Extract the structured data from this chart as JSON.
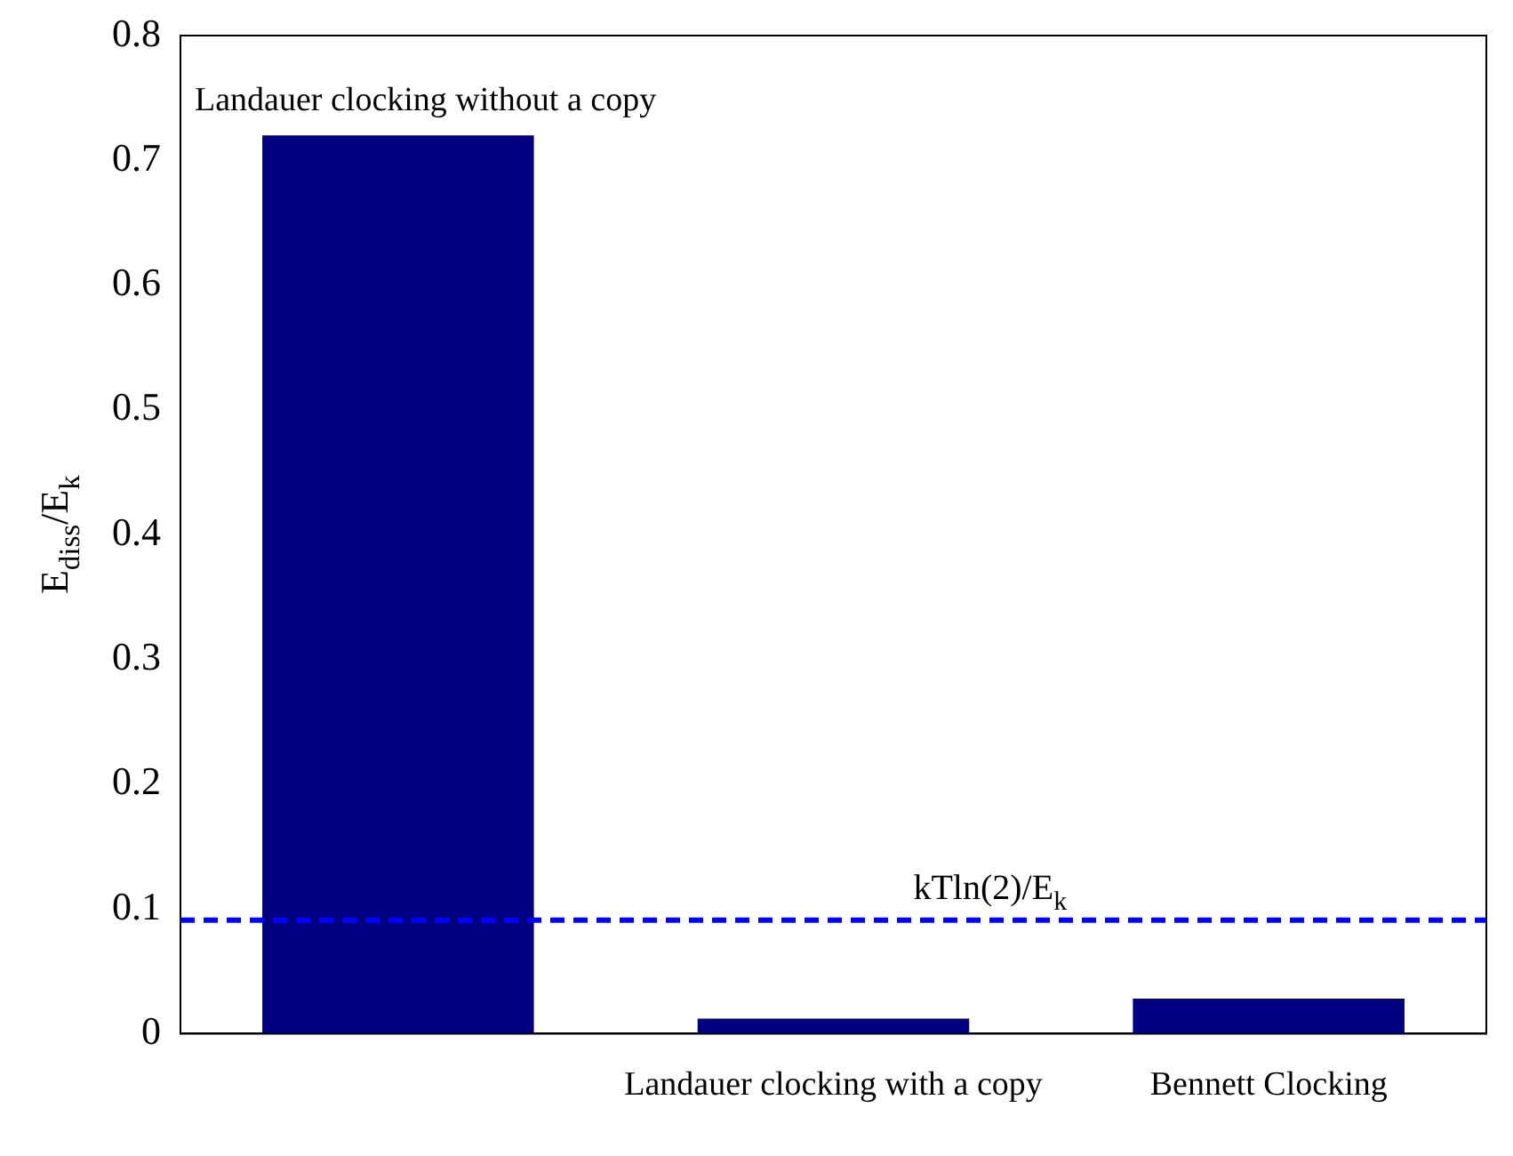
{
  "chart_data": {
    "type": "bar",
    "ylabel": "E$_{diss}$/E$_{k}$",
    "categories": [
      null,
      "Landauer clocking with a copy",
      "Bennett Clocking"
    ],
    "values": [
      0.72,
      0.012,
      0.028
    ],
    "color": "#000080",
    "ylim": [
      0,
      0.8
    ],
    "yticks": [
      0,
      0.1,
      0.2,
      0.3,
      0.4,
      0.5,
      0.6,
      0.7,
      0.8
    ],
    "grid": false,
    "legend": false,
    "ref_lines": [
      {
        "axis": "y",
        "value": 0.091,
        "label": "kTln(2)/E$_{k}$",
        "color": "#0000ff",
        "line_style": "dashed"
      }
    ],
    "annotations": [
      {
        "text": "Landauer clocking without a copy",
        "y": 0.72
      }
    ]
  }
}
